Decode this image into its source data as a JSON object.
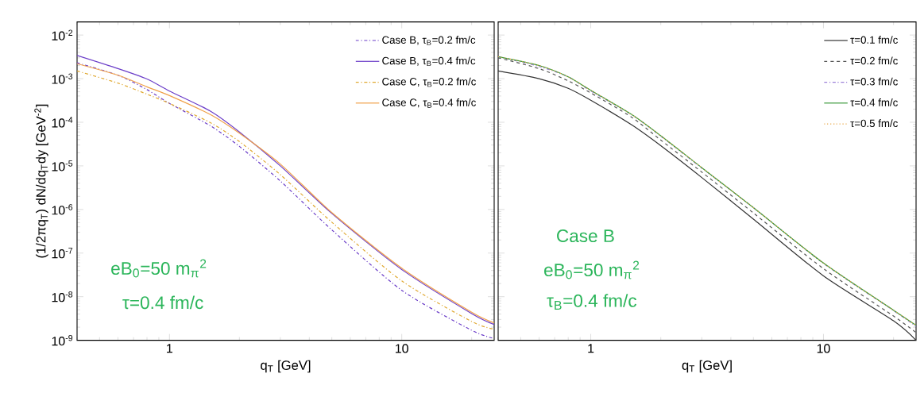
{
  "chart_data": [
    {
      "type": "line",
      "log": "xy",
      "legend": "top right",
      "xlabel": "q$_{T}$  [GeV]",
      "ylabel": "(1/2πq$_{T}$) dN/dq$_{T}$dy  [GeV$^{-2}$]",
      "xlim": [
        0.4,
        25
      ],
      "ylim": [
        1e-09,
        0.02
      ],
      "xticks": [
        1,
        10
      ],
      "yticks": [
        {
          "value": 1e-09,
          "label": "10$^{-9}$"
        },
        {
          "value": 1e-08,
          "label": "10$^{-8}$"
        },
        {
          "value": 1e-07,
          "label": "10$^{-7}$"
        },
        {
          "value": 1e-06,
          "label": "10$^{-6}$"
        },
        {
          "value": 1e-05,
          "label": "10$^{-5}$"
        },
        {
          "value": 0.0001,
          "label": "10$^{-4}$"
        },
        {
          "value": 0.001,
          "label": "10$^{-3}$"
        },
        {
          "value": 0.01,
          "label": "10$^{-2}$"
        }
      ],
      "x": [
        0.4,
        0.6,
        0.8,
        1,
        1.5,
        2,
        3,
        5,
        10,
        20,
        25
      ],
      "series": [
        {
          "name": "Case B, τ$_{B}$=0.2 fm/c",
          "color": "#6a3cc8",
          "line_style": "dashdot",
          "values": [
            0.0023,
            0.0012,
            0.00056,
            0.00027,
            8.3e-05,
            2.8e-05,
            4.5e-06,
            3.4e-07,
            1.4e-08,
            1.7e-09,
            1.1e-09
          ]
        },
        {
          "name": "Case B, τ$_{B}$=0.4 fm/c",
          "color": "#6a3cc8",
          "line_style": "solid",
          "values": [
            0.0034,
            0.0017,
            0.00098,
            0.00052,
            0.00018,
            6e-05,
            1e-05,
            8.1e-07,
            4.2e-08,
            4.1e-09,
            2.3e-09
          ]
        },
        {
          "name": "Case C, τ$_{B}$=0.2 fm/c",
          "color": "#e0a830",
          "line_style": "dashdot",
          "values": [
            0.0015,
            0.00079,
            0.00044,
            0.00027,
            9.8e-05,
            3.6e-05,
            6.3e-06,
            5.1e-07,
            2.3e-08,
            2.7e-09,
            1.8e-09
          ]
        },
        {
          "name": "Case C, τ$_{B}$=0.4 fm/c",
          "color": "#f0a048",
          "line_style": "solid",
          "values": [
            0.0022,
            0.0012,
            0.00065,
            0.00041,
            0.00015,
            5.6e-05,
            1.1e-05,
            8.5e-07,
            4.5e-08,
            4.4e-09,
            2.5e-09
          ]
        }
      ],
      "annotations": [
        "eB$_{0}$=50 m$_{π}$$^{2}$",
        "τ=0.4 fm/c"
      ]
    },
    {
      "type": "line",
      "log": "xy",
      "legend": "top right",
      "xlabel": "q$_{T}$  [GeV]",
      "tick_labels": "x",
      "xlim": [
        0.4,
        25
      ],
      "ylim": [
        1e-09,
        0.02
      ],
      "xticks": [
        1,
        10
      ],
      "yticks": [
        {
          "value": 1e-09,
          "label": null
        },
        {
          "value": 1e-08,
          "label": null
        },
        {
          "value": 1e-07,
          "label": null
        },
        {
          "value": 1e-06,
          "label": null
        },
        {
          "value": 1e-05,
          "label": null
        },
        {
          "value": 0.0001,
          "label": null
        },
        {
          "value": 0.001,
          "label": null
        },
        {
          "value": 0.01,
          "label": null
        }
      ],
      "x": [
        0.4,
        0.6,
        0.8,
        1,
        1.5,
        2,
        3,
        5,
        10,
        20,
        25
      ],
      "series": [
        {
          "name": "τ=0.1 fm/c",
          "color": "#333333",
          "line_style": "solid",
          "values": [
            0.0015,
            0.001,
            0.0006,
            0.00032,
            8.7e-05,
            2.9e-05,
            5.4e-06,
            6e-07,
            3e-08,
            2.8e-09,
            1e-09
          ]
        },
        {
          "name": "τ=0.2 fm/c",
          "color": "#555555",
          "line_style": "dashed",
          "values": [
            0.003,
            0.0017,
            0.00089,
            0.00047,
            0.00013,
            3.9e-05,
            7.2e-06,
            8.3e-07,
            4.4e-08,
            3.6e-09,
            1.5e-09
          ]
        },
        {
          "name": "τ=0.3 fm/c",
          "color": "#9b80d8",
          "line_style": "dashdot",
          "values": [
            0.0032,
            0.0019,
            0.0011,
            0.00052,
            0.00015,
            4.8e-05,
            8.9e-06,
            1.1e-06,
            5.8e-08,
            4.8e-09,
            2.1e-09
          ]
        },
        {
          "name": "τ=0.4 fm/c",
          "color": "#3a9a3a",
          "line_style": "solid",
          "values": [
            0.0032,
            0.002,
            0.0011,
            0.00054,
            0.00015,
            4.9e-05,
            9.1e-06,
            1.1e-06,
            5.9e-08,
            4.9e-09,
            2.2e-09
          ]
        },
        {
          "name": "τ=0.5 fm/c",
          "color": "#e8a848",
          "line_style": "dotted",
          "values": [
            0.0032,
            0.002,
            0.0011,
            0.00054,
            0.00015,
            4.9e-05,
            9.1e-06,
            1.1e-06,
            5.9e-08,
            4.9e-09,
            2.2e-09
          ]
        }
      ],
      "annotations": [
        "Case B",
        "eB$_{0}$=50 m$_{π}$$^{2}$",
        "τ$_{B}$=0.4 fm/c"
      ]
    }
  ]
}
